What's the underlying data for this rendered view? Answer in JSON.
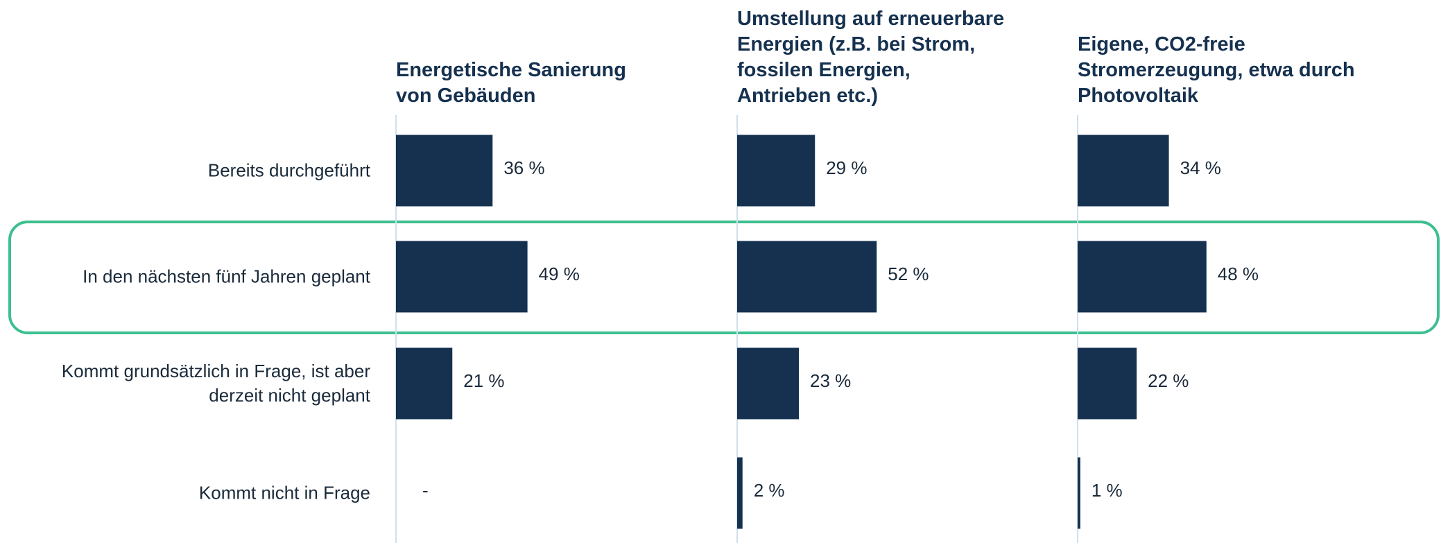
{
  "chart_data": [
    {
      "type": "bar",
      "orientation": "horizontal",
      "title": "Energetische Sanierung von Gebäuden",
      "categories": [
        "Bereits durchgeführt",
        "In den nächsten fünf Jahren geplant",
        "Kommt grundsätzlich in Frage, ist aber derzeit nicht geplant",
        "Kommt nicht in Frage"
      ],
      "values": [
        36,
        49,
        21,
        null
      ],
      "value_labels": [
        "36 %",
        "49 %",
        "21 %",
        "-"
      ],
      "color": "#15314f",
      "xlim": [
        0,
        100
      ]
    },
    {
      "type": "bar",
      "orientation": "horizontal",
      "title": "Umstellung auf erneuerbare Energien (z.B. bei Strom, fossilen Energien, Antrieben etc.)",
      "values": [
        29,
        52,
        23,
        2
      ],
      "value_labels": [
        "29 %",
        "52 %",
        "23 %",
        "2 %"
      ],
      "color": "#15314f",
      "xlim": [
        0,
        100
      ]
    },
    {
      "type": "bar",
      "orientation": "horizontal",
      "title": "Eigene, CO2-freie Stromerzeugung, etwa durch Photovoltaik",
      "values": [
        34,
        48,
        22,
        1
      ],
      "value_labels": [
        "34 %",
        "48 %",
        "22 %",
        "1 %"
      ],
      "color": "#15314f",
      "xlim": [
        0,
        100
      ]
    }
  ]
}
